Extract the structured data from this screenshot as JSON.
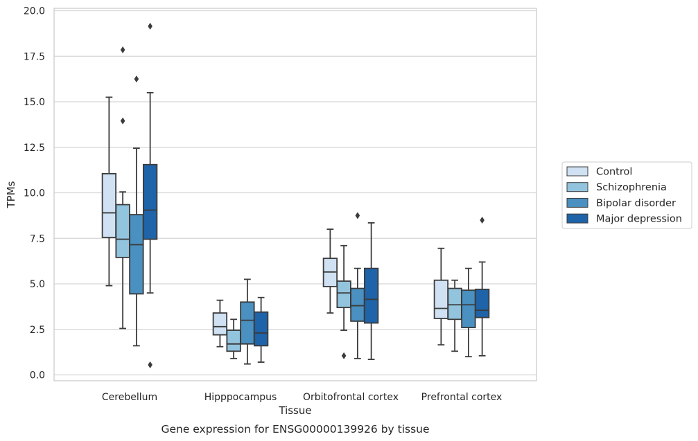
{
  "chart_data": {
    "type": "box",
    "title": "",
    "caption": "Gene expression for ENSG00000139926 by tissue",
    "xlabel": "Tissue",
    "ylabel": "TPMs",
    "ylim": [
      -0.35,
      20.1
    ],
    "yticks": [
      "0.0",
      "2.5",
      "5.0",
      "7.5",
      "10.0",
      "12.5",
      "15.0",
      "17.5",
      "20.0"
    ],
    "categories": [
      "Cerebellum",
      "Hipppocampus",
      "Orbitofrontal cortex",
      "Prefrontal cortex"
    ],
    "grid": "horizontal",
    "legend_position": "right",
    "series": [
      {
        "name": "Control",
        "color": "#cfe1f2",
        "boxes": [
          {
            "whisker_low": 4.9,
            "q1": 7.55,
            "median": 8.9,
            "q3": 11.05,
            "whisker_high": 15.25,
            "outliers": []
          },
          {
            "whisker_low": 1.55,
            "q1": 2.2,
            "median": 2.65,
            "q3": 3.4,
            "whisker_high": 4.1,
            "outliers": []
          },
          {
            "whisker_low": 3.4,
            "q1": 4.85,
            "median": 5.65,
            "q3": 6.4,
            "whisker_high": 8.0,
            "outliers": []
          },
          {
            "whisker_low": 1.65,
            "q1": 3.1,
            "median": 3.65,
            "q3": 5.2,
            "whisker_high": 6.95,
            "outliers": []
          }
        ]
      },
      {
        "name": "Schizophrenia",
        "color": "#93c4de",
        "boxes": [
          {
            "whisker_low": 2.55,
            "q1": 6.45,
            "median": 7.45,
            "q3": 9.35,
            "whisker_high": 10.05,
            "outliers": [
              13.95,
              17.85
            ]
          },
          {
            "whisker_low": 0.9,
            "q1": 1.3,
            "median": 1.7,
            "q3": 2.45,
            "whisker_high": 3.05,
            "outliers": []
          },
          {
            "whisker_low": 2.45,
            "q1": 3.7,
            "median": 4.5,
            "q3": 5.15,
            "whisker_high": 7.1,
            "outliers": [
              1.05
            ]
          },
          {
            "whisker_low": 1.3,
            "q1": 3.05,
            "median": 3.85,
            "q3": 4.75,
            "whisker_high": 5.2,
            "outliers": []
          }
        ]
      },
      {
        "name": "Bipolar disorder",
        "color": "#4a90c0",
        "boxes": [
          {
            "whisker_low": 1.6,
            "q1": 4.45,
            "median": 7.15,
            "q3": 8.8,
            "whisker_high": 12.45,
            "outliers": [
              16.25
            ]
          },
          {
            "whisker_low": 0.6,
            "q1": 1.7,
            "median": 3.0,
            "q3": 4.0,
            "whisker_high": 5.25,
            "outliers": []
          },
          {
            "whisker_low": 0.9,
            "q1": 2.95,
            "median": 3.8,
            "q3": 4.75,
            "whisker_high": 5.85,
            "outliers": [
              8.75
            ]
          },
          {
            "whisker_low": 1.0,
            "q1": 2.6,
            "median": 3.85,
            "q3": 4.65,
            "whisker_high": 5.85,
            "outliers": []
          }
        ]
      },
      {
        "name": "Major depression",
        "color": "#1f63a8",
        "boxes": [
          {
            "whisker_low": 4.5,
            "q1": 7.45,
            "median": 9.05,
            "q3": 11.55,
            "whisker_high": 15.5,
            "outliers": [
              0.55,
              19.15
            ]
          },
          {
            "whisker_low": 0.7,
            "q1": 1.6,
            "median": 2.3,
            "q3": 3.45,
            "whisker_high": 4.25,
            "outliers": []
          },
          {
            "whisker_low": 0.85,
            "q1": 2.85,
            "median": 4.15,
            "q3": 5.85,
            "whisker_high": 8.35,
            "outliers": []
          },
          {
            "whisker_low": 1.05,
            "q1": 3.15,
            "median": 3.55,
            "q3": 4.7,
            "whisker_high": 6.2,
            "outliers": [
              8.5
            ]
          }
        ]
      }
    ]
  }
}
